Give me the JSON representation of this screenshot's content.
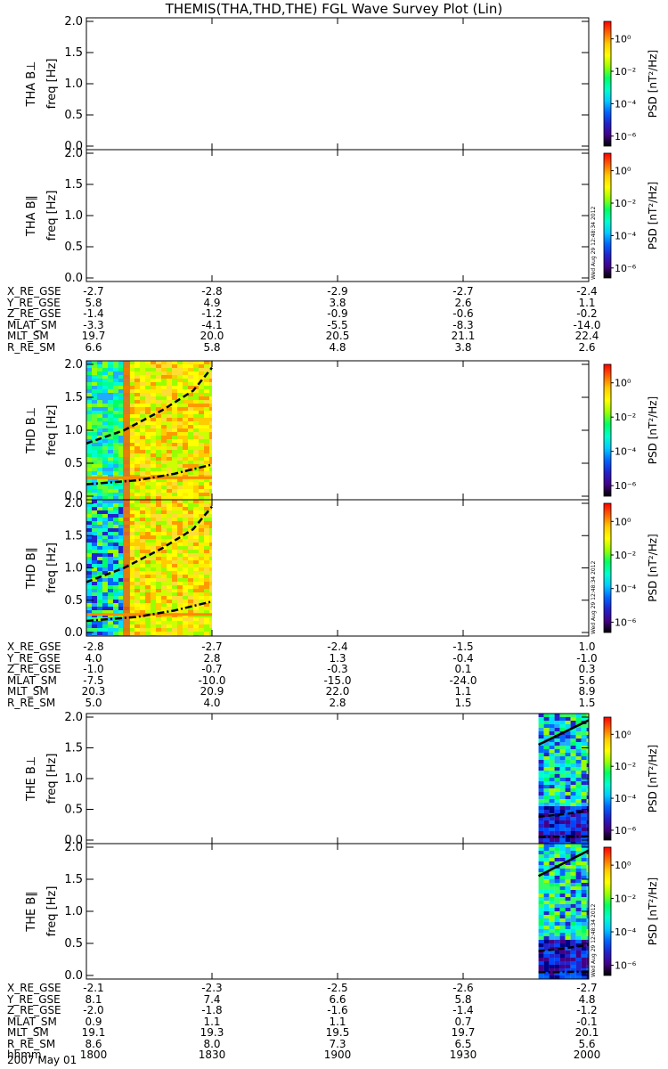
{
  "title": "THEMIS(THA,THD,THE) FGL Wave Survey Plot (Lin)",
  "colorbar": {
    "label": "PSD [nT²/Hz]",
    "ticks": [
      "10⁰",
      "10⁻²",
      "10⁻⁴",
      "10⁻⁶"
    ],
    "colors": [
      "#ff0000",
      "#ff6600",
      "#ffcc00",
      "#ffff00",
      "#99ff00",
      "#00ff66",
      "#00ffcc",
      "#00ccff",
      "#0066ff",
      "#2222cc",
      "#440088",
      "#000000"
    ]
  },
  "timestamp": "Wed Aug 29 12:48:34 2012",
  "chart_data": {
    "type": "heatmap",
    "title": "THEMIS(THA,THD,THE) FGL Wave Survey Plot (Lin)",
    "xlabel": "hhmm",
    "xticks": [
      "1800",
      "1830",
      "1900",
      "1930",
      "2000"
    ],
    "xlim": [
      "18:00",
      "20:00"
    ],
    "date": "2007 May 01",
    "ylabel": "freq [Hz]",
    "ylim": [
      0.0,
      2.0
    ],
    "yticks": [
      "0.0",
      "0.5",
      "1.0",
      "1.5",
      "2.0"
    ],
    "panels": [
      {
        "name": "THA B⊥",
        "data_coverage": null
      },
      {
        "name": "THA B∥",
        "data_coverage": null
      },
      {
        "name": "THD B⊥",
        "data_coverage": [
          "18:00",
          "18:30"
        ],
        "lines": [
          {
            "style": "dashed",
            "points": [
              [
                0,
                0.8
              ],
              [
                0.3,
                1.0
              ],
              [
                0.6,
                1.3
              ],
              [
                0.85,
                1.6
              ],
              [
                1,
                1.95
              ]
            ]
          },
          {
            "style": "dashdot",
            "points": [
              [
                0,
                0.18
              ],
              [
                0.4,
                0.24
              ],
              [
                0.7,
                0.34
              ],
              [
                1,
                0.48
              ]
            ]
          }
        ]
      },
      {
        "name": "THD B∥",
        "data_coverage": [
          "18:00",
          "18:30"
        ],
        "lines": [
          {
            "style": "dashed",
            "points": [
              [
                0,
                0.78
              ],
              [
                0.3,
                1.0
              ],
              [
                0.6,
                1.3
              ],
              [
                0.85,
                1.6
              ],
              [
                1,
                1.95
              ]
            ]
          },
          {
            "style": "dashdot",
            "points": [
              [
                0,
                0.18
              ],
              [
                0.4,
                0.24
              ],
              [
                0.7,
                0.34
              ],
              [
                1,
                0.48
              ]
            ]
          }
        ]
      },
      {
        "name": "THE B⊥",
        "data_coverage": [
          "19:48",
          "20:00"
        ],
        "lines": [
          {
            "style": "solid",
            "points": [
              [
                0,
                1.55
              ],
              [
                0.5,
                1.75
              ],
              [
                1,
                1.95
              ]
            ]
          },
          {
            "style": "dashed",
            "points": [
              [
                0,
                0.38
              ],
              [
                0.5,
                0.42
              ],
              [
                1,
                0.48
              ]
            ]
          },
          {
            "style": "dashdot",
            "points": [
              [
                0,
                0.05
              ],
              [
                1,
                0.06
              ]
            ]
          }
        ]
      },
      {
        "name": "THE B∥",
        "data_coverage": [
          "19:48",
          "20:00"
        ],
        "lines": [
          {
            "style": "solid",
            "points": [
              [
                0,
                1.55
              ],
              [
                0.5,
                1.75
              ],
              [
                1,
                1.95
              ]
            ]
          },
          {
            "style": "dashed",
            "points": [
              [
                0,
                0.38
              ],
              [
                0.5,
                0.42
              ],
              [
                1,
                0.48
              ]
            ]
          },
          {
            "style": "dashdot",
            "points": [
              [
                0,
                0.05
              ],
              [
                1,
                0.06
              ]
            ]
          }
        ]
      }
    ]
  },
  "ephemeris": [
    {
      "probe": "THA",
      "rows": [
        {
          "name": "X_RE_GSE",
          "values": [
            "-2.7",
            "-2.8",
            "-2.9",
            "-2.7",
            "-2.4"
          ]
        },
        {
          "name": "Y_RE_GSE",
          "values": [
            "5.8",
            "4.9",
            "3.8",
            "2.6",
            "1.1"
          ]
        },
        {
          "name": "Z_RE_GSE",
          "values": [
            "-1.4",
            "-1.2",
            "-0.9",
            "-0.6",
            "-0.2"
          ]
        },
        {
          "name": "MLAT_SM",
          "values": [
            "-3.3",
            "-4.1",
            "-5.5",
            "-8.3",
            "-14.0"
          ]
        },
        {
          "name": "MLT_SM",
          "values": [
            "19.7",
            "20.0",
            "20.5",
            "21.1",
            "22.4"
          ]
        },
        {
          "name": "R_RE_SM",
          "values": [
            "6.6",
            "5.8",
            "4.8",
            "3.8",
            "2.6"
          ]
        }
      ]
    },
    {
      "probe": "THD",
      "rows": [
        {
          "name": "X_RE_GSE",
          "values": [
            "-2.8",
            "-2.7",
            "-2.4",
            "-1.5",
            "1.0"
          ]
        },
        {
          "name": "Y_RE_GSE",
          "values": [
            "4.0",
            "2.8",
            "1.3",
            "-0.4",
            "-1.0"
          ]
        },
        {
          "name": "Z_RE_GSE",
          "values": [
            "-1.0",
            "-0.7",
            "-0.3",
            "0.1",
            "0.3"
          ]
        },
        {
          "name": "MLAT_SM",
          "values": [
            "-7.5",
            "-10.0",
            "-15.0",
            "-24.0",
            "5.6"
          ]
        },
        {
          "name": "MLT_SM",
          "values": [
            "20.3",
            "20.9",
            "22.0",
            "1.1",
            "8.9"
          ]
        },
        {
          "name": "R_RE_SM",
          "values": [
            "5.0",
            "4.0",
            "2.8",
            "1.5",
            "1.5"
          ]
        }
      ]
    },
    {
      "probe": "THE",
      "rows": [
        {
          "name": "X_RE_GSE",
          "values": [
            "-2.1",
            "-2.3",
            "-2.5",
            "-2.6",
            "-2.7"
          ]
        },
        {
          "name": "Y_RE_GSE",
          "values": [
            "8.1",
            "7.4",
            "6.6",
            "5.8",
            "4.8"
          ]
        },
        {
          "name": "Z_RE_GSE",
          "values": [
            "-2.0",
            "-1.8",
            "-1.6",
            "-1.4",
            "-1.2"
          ]
        },
        {
          "name": "MLAT_SM",
          "values": [
            "0.9",
            "1.1",
            "1.1",
            "0.7",
            "-0.1"
          ]
        },
        {
          "name": "MLT_SM",
          "values": [
            "19.1",
            "19.3",
            "19.5",
            "19.7",
            "20.1"
          ]
        },
        {
          "name": "R_RE_SM",
          "values": [
            "8.6",
            "8.0",
            "7.3",
            "6.5",
            "5.6"
          ]
        },
        {
          "name": "hhmm",
          "values": [
            "1800",
            "1830",
            "1900",
            "1930",
            "2000"
          ]
        }
      ]
    }
  ]
}
